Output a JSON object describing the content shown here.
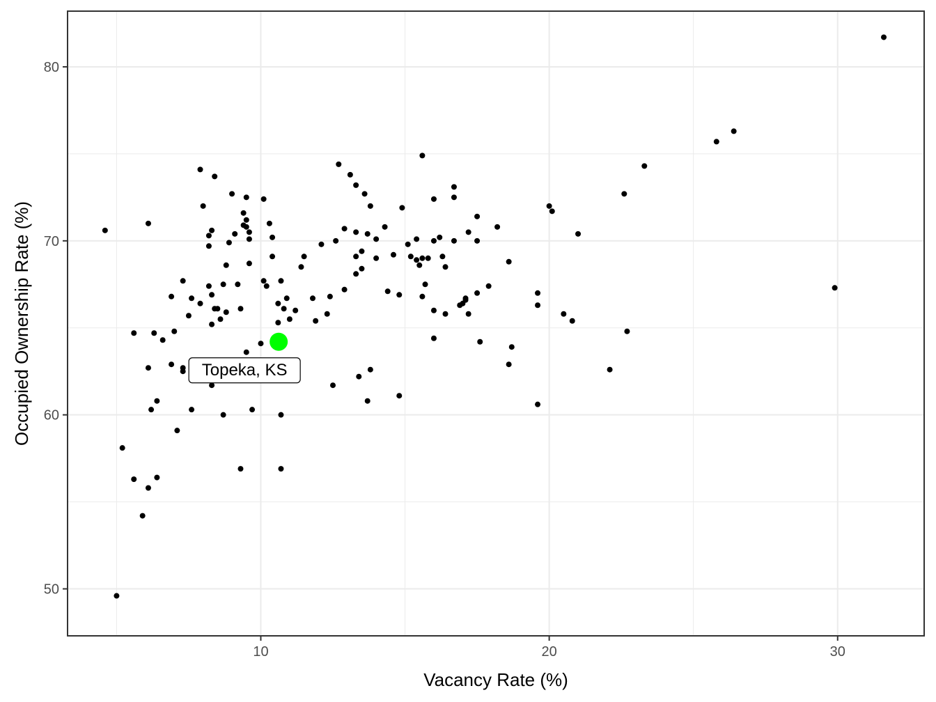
{
  "chart_data": {
    "type": "scatter",
    "title": "",
    "xlabel": "Vacancy Rate (%)",
    "ylabel": "Occupied Ownership Rate (%)",
    "xlim": [
      3.3,
      33.0
    ],
    "ylim": [
      47.3,
      83.2
    ],
    "x_ticks": [
      10,
      20,
      30
    ],
    "y_ticks": [
      50,
      60,
      70,
      80
    ],
    "x_minor": [
      5,
      15,
      25
    ],
    "y_minor": [
      55,
      65,
      75
    ],
    "grid": true,
    "colors": {
      "point": "#000000",
      "highlight": "#00ff00",
      "grid": "#ebebeb",
      "panel_border": "#333333"
    },
    "highlight": {
      "label": "Topeka, KS",
      "x": 10.62,
      "y": 64.2
    },
    "points": [
      [
        4.6,
        70.6
      ],
      [
        5.0,
        49.6
      ],
      [
        5.2,
        58.1
      ],
      [
        5.6,
        64.7
      ],
      [
        5.6,
        56.3
      ],
      [
        5.9,
        54.2
      ],
      [
        6.1,
        71.0
      ],
      [
        6.1,
        62.7
      ],
      [
        6.1,
        55.8
      ],
      [
        6.2,
        60.3
      ],
      [
        6.3,
        64.7
      ],
      [
        6.4,
        56.4
      ],
      [
        6.4,
        60.8
      ],
      [
        6.6,
        64.3
      ],
      [
        6.9,
        62.9
      ],
      [
        6.9,
        66.8
      ],
      [
        7.0,
        64.8
      ],
      [
        7.1,
        59.1
      ],
      [
        7.3,
        62.7
      ],
      [
        7.3,
        62.5
      ],
      [
        7.3,
        67.7
      ],
      [
        7.5,
        65.7
      ],
      [
        7.6,
        60.3
      ],
      [
        7.6,
        66.7
      ],
      [
        7.9,
        66.4
      ],
      [
        7.9,
        74.1
      ],
      [
        8.0,
        72.0
      ],
      [
        8.2,
        69.7
      ],
      [
        8.2,
        67.4
      ],
      [
        8.2,
        70.3
      ],
      [
        8.3,
        70.6
      ],
      [
        8.3,
        66.9
      ],
      [
        8.3,
        65.2
      ],
      [
        8.3,
        61.7
      ],
      [
        8.4,
        73.7
      ],
      [
        8.4,
        66.1
      ],
      [
        8.5,
        66.1
      ],
      [
        8.6,
        65.5
      ],
      [
        8.7,
        67.5
      ],
      [
        8.7,
        60.0
      ],
      [
        8.8,
        68.6
      ],
      [
        8.8,
        65.9
      ],
      [
        8.9,
        69.9
      ],
      [
        9.0,
        72.7
      ],
      [
        9.1,
        70.4
      ],
      [
        9.2,
        67.5
      ],
      [
        9.3,
        66.1
      ],
      [
        9.3,
        56.9
      ],
      [
        9.4,
        71.6
      ],
      [
        9.4,
        70.9
      ],
      [
        9.5,
        72.5
      ],
      [
        9.5,
        71.2
      ],
      [
        9.5,
        70.8
      ],
      [
        9.5,
        63.6
      ],
      [
        9.6,
        70.5
      ],
      [
        9.6,
        70.1
      ],
      [
        9.6,
        68.7
      ],
      [
        9.7,
        60.3
      ],
      [
        10.0,
        64.1
      ],
      [
        10.1,
        67.7
      ],
      [
        10.1,
        72.4
      ],
      [
        10.2,
        67.4
      ],
      [
        10.3,
        71.0
      ],
      [
        10.4,
        70.2
      ],
      [
        10.4,
        69.1
      ],
      [
        10.6,
        66.4
      ],
      [
        10.6,
        65.3
      ],
      [
        10.7,
        67.7
      ],
      [
        10.7,
        60.0
      ],
      [
        10.7,
        56.9
      ],
      [
        10.8,
        66.1
      ],
      [
        10.9,
        66.7
      ],
      [
        11.0,
        65.5
      ],
      [
        11.2,
        66.0
      ],
      [
        11.4,
        68.5
      ],
      [
        11.5,
        69.1
      ],
      [
        11.8,
        66.7
      ],
      [
        11.9,
        65.4
      ],
      [
        12.1,
        69.8
      ],
      [
        12.3,
        65.8
      ],
      [
        12.4,
        66.8
      ],
      [
        12.5,
        61.7
      ],
      [
        12.6,
        70.0
      ],
      [
        12.7,
        74.4
      ],
      [
        12.9,
        67.2
      ],
      [
        12.9,
        70.7
      ],
      [
        13.1,
        73.8
      ],
      [
        13.3,
        73.2
      ],
      [
        13.3,
        70.5
      ],
      [
        13.3,
        69.1
      ],
      [
        13.3,
        68.1
      ],
      [
        13.4,
        62.2
      ],
      [
        13.5,
        68.4
      ],
      [
        13.5,
        69.4
      ],
      [
        13.6,
        72.7
      ],
      [
        13.7,
        70.4
      ],
      [
        13.7,
        60.8
      ],
      [
        13.8,
        72.0
      ],
      [
        13.8,
        62.6
      ],
      [
        14.0,
        69.0
      ],
      [
        14.0,
        70.1
      ],
      [
        14.3,
        70.8
      ],
      [
        14.4,
        67.1
      ],
      [
        14.6,
        69.2
      ],
      [
        14.8,
        66.9
      ],
      [
        14.8,
        61.1
      ],
      [
        14.9,
        71.9
      ],
      [
        15.1,
        69.8
      ],
      [
        15.2,
        69.1
      ],
      [
        15.4,
        70.1
      ],
      [
        15.4,
        68.9
      ],
      [
        15.5,
        68.6
      ],
      [
        15.6,
        69.0
      ],
      [
        15.6,
        66.8
      ],
      [
        15.7,
        67.5
      ],
      [
        15.8,
        69.0
      ],
      [
        16.0,
        72.4
      ],
      [
        16.0,
        70.0
      ],
      [
        16.0,
        66.0
      ],
      [
        16.0,
        64.4
      ],
      [
        16.2,
        70.2
      ],
      [
        16.3,
        69.1
      ],
      [
        16.4,
        68.5
      ],
      [
        16.4,
        65.8
      ],
      [
        16.7,
        73.1
      ],
      [
        16.7,
        72.5
      ],
      [
        16.7,
        70.0
      ],
      [
        16.9,
        66.3
      ],
      [
        17.0,
        66.4
      ],
      [
        17.1,
        66.6
      ],
      [
        17.1,
        66.7
      ],
      [
        17.2,
        70.5
      ],
      [
        17.2,
        65.8
      ],
      [
        17.5,
        70.0
      ],
      [
        17.5,
        71.4
      ],
      [
        17.5,
        67.0
      ],
      [
        17.6,
        64.2
      ],
      [
        17.9,
        67.4
      ],
      [
        18.2,
        70.8
      ],
      [
        18.6,
        68.8
      ],
      [
        18.6,
        62.9
      ],
      [
        18.7,
        63.9
      ],
      [
        19.6,
        67.0
      ],
      [
        19.6,
        66.3
      ],
      [
        19.6,
        60.6
      ],
      [
        20.0,
        72.0
      ],
      [
        20.1,
        71.7
      ],
      [
        20.5,
        65.8
      ],
      [
        20.8,
        65.4
      ],
      [
        21.0,
        70.4
      ],
      [
        22.1,
        62.6
      ],
      [
        22.6,
        72.7
      ],
      [
        22.7,
        64.8
      ],
      [
        15.6,
        74.9
      ],
      [
        23.3,
        74.3
      ],
      [
        25.8,
        75.7
      ],
      [
        26.4,
        76.3
      ],
      [
        29.9,
        67.3
      ],
      [
        31.6,
        81.7
      ]
    ]
  }
}
